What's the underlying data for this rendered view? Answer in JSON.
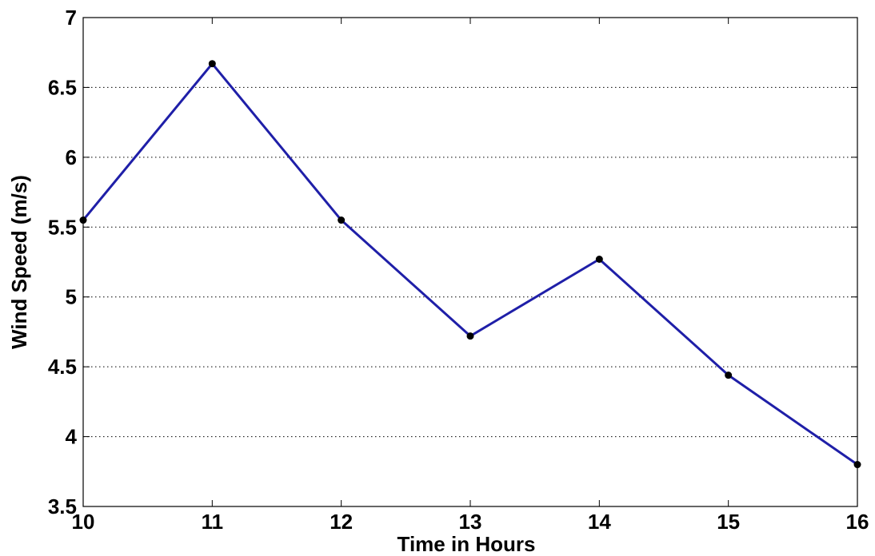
{
  "chart_data": {
    "type": "line",
    "title": "",
    "xlabel": "Time in Hours",
    "ylabel": "Wind Speed (m/s)",
    "xlim": [
      10,
      16
    ],
    "ylim": [
      3.5,
      7
    ],
    "xticks": [
      "10",
      "11",
      "12",
      "13",
      "14",
      "15",
      "16"
    ],
    "yticks": [
      "3.5",
      "4",
      "4.5",
      "5",
      "5.5",
      "6",
      "6.5",
      "7"
    ],
    "grid": "horizontal-dotted",
    "series": [
      {
        "x": [
          10,
          11,
          12,
          13,
          14,
          15,
          16
        ],
        "y": [
          5.55,
          6.67,
          5.55,
          4.72,
          5.27,
          4.44,
          3.8
        ],
        "line_color": "#1f1fa8",
        "marker_color": "#000000",
        "marker": "dot"
      }
    ]
  }
}
